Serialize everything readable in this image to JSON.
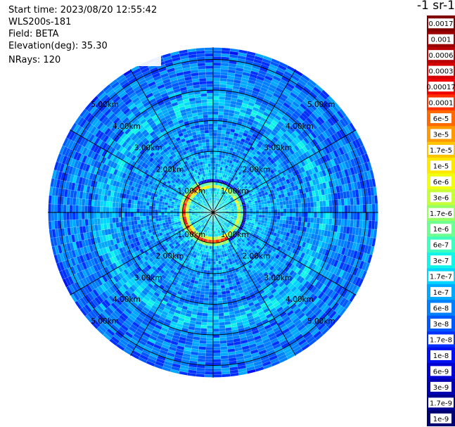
{
  "info": {
    "start_time": "Start time: 2023/08/20 12:55:42",
    "device": "WLS200s-181",
    "field": "Field: BETA",
    "elevation": "Elevation(deg): 35.30",
    "nrays": "NRays: 120"
  },
  "colorbar": {
    "unit_label": "-1 sr-1",
    "ticks": [
      "0.0017",
      "0.001",
      "0.0006",
      "0.0003",
      "0.00017",
      "0.0001",
      "6e-5",
      "3e-5",
      "1.7e-5",
      "1e-5",
      "6e-6",
      "3e-6",
      "1.7e-6",
      "1e-6",
      "6e-7",
      "3e-7",
      "1.7e-7",
      "1e-7",
      "6e-8",
      "3e-8",
      "1.7e-8",
      "1e-8",
      "6e-9",
      "3e-9",
      "1.7e-9",
      "1e-9"
    ],
    "colors": [
      "#7f0000",
      "#9a0000",
      "#b80000",
      "#d40000",
      "#f00000",
      "#ff3000",
      "#ff6a00",
      "#ff9a00",
      "#ffc400",
      "#ffe800",
      "#f0ff10",
      "#c6ff3a",
      "#97ff66",
      "#6dff90",
      "#3effc0",
      "#10f5e8",
      "#00d4ff",
      "#00a8ff",
      "#0080ff",
      "#0058ff",
      "#0030ff",
      "#0010f0",
      "#0000d0",
      "#0000b0",
      "#000090",
      "#000070"
    ]
  },
  "chart_data": {
    "type": "heatmap",
    "projection": "polar-ppi",
    "field": "BETA",
    "n_rays": 120,
    "elevation_deg": 35.3,
    "range_ring_labels": [
      "1.00km",
      "2.00km",
      "3.00km",
      "4.00km",
      "5.00km"
    ],
    "range_rings_km": [
      1,
      2,
      3,
      4,
      5
    ],
    "max_range_km": 5.4,
    "radial_lines_deg": [
      0,
      30,
      60,
      90,
      120,
      150,
      180,
      210,
      240,
      270,
      300,
      330
    ],
    "color_scale": "log",
    "value_range": [
      1e-09,
      0.0017
    ],
    "range_profile": [
      {
        "range_km": 0.0,
        "beta": 3e-07
      },
      {
        "range_km": 0.3,
        "beta": 3e-07
      },
      {
        "range_km": 0.75,
        "beta": 2e-07
      },
      {
        "range_km": 0.95,
        "beta": 6e-05
      },
      {
        "range_km": 1.1,
        "beta": 1.7e-07
      },
      {
        "range_km": 1.5,
        "beta": 1e-07
      },
      {
        "range_km": 2.0,
        "beta": 8e-08
      },
      {
        "range_km": 3.0,
        "beta": 6e-08
      },
      {
        "range_km": 3.6,
        "beta": 1.7e-07
      },
      {
        "range_km": 4.0,
        "beta": 6e-08
      },
      {
        "range_km": 5.0,
        "beta": 5e-08
      },
      {
        "range_km": 5.4,
        "beta": 4e-08
      }
    ]
  }
}
